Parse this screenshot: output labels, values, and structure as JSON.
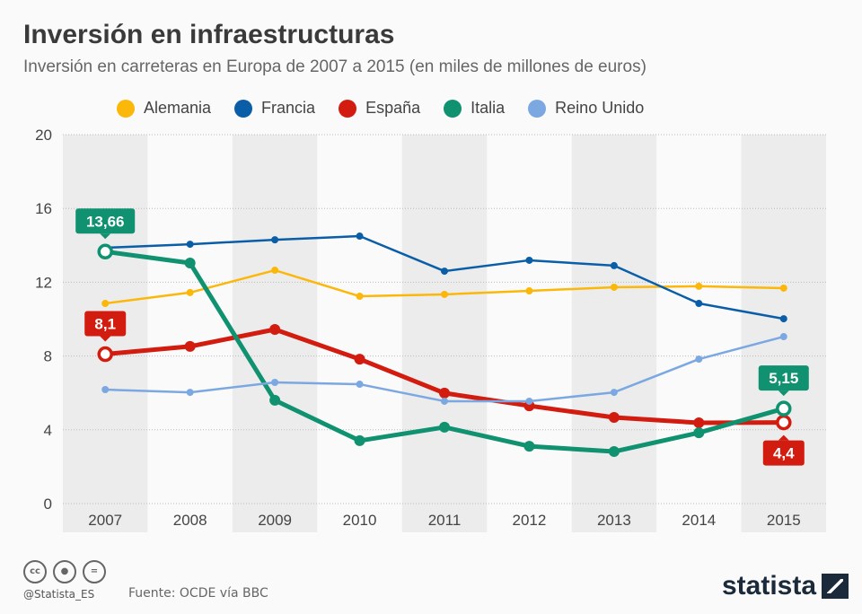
{
  "header": {
    "title": "Inversión en infraestructuras",
    "subtitle": "Inversión en carreteras en Europa de 2007 a 2015 (en miles de millones de euros)"
  },
  "chart_data": {
    "type": "line",
    "categories": [
      "2007",
      "2008",
      "2009",
      "2010",
      "2011",
      "2012",
      "2013",
      "2014",
      "2015"
    ],
    "ylim": [
      0,
      20
    ],
    "yticks": [
      "0",
      "4",
      "8",
      "12",
      "16",
      "20"
    ],
    "grid": true,
    "legend_position": "top",
    "series": [
      {
        "name": "Alemania",
        "color": "#fbb80b",
        "values": [
          10.85,
          11.44,
          12.65,
          11.24,
          11.34,
          11.53,
          11.73,
          11.78,
          11.68
        ]
      },
      {
        "name": "Francia",
        "color": "#0a5ea8",
        "values": [
          13.87,
          14.06,
          14.3,
          14.5,
          12.6,
          13.19,
          12.9,
          10.85,
          10.02
        ]
      },
      {
        "name": "España",
        "color": "#d21c0f",
        "values": [
          8.1,
          8.52,
          9.44,
          7.83,
          5.99,
          5.3,
          4.67,
          4.38,
          4.4
        ]
      },
      {
        "name": "Italia",
        "color": "#109170",
        "values": [
          13.66,
          13.04,
          5.6,
          3.41,
          4.14,
          3.11,
          2.82,
          3.84,
          5.15
        ]
      },
      {
        "name": "Reino Unido",
        "color": "#7ca8e2",
        "values": [
          6.18,
          6.03,
          6.57,
          6.47,
          5.55,
          5.55,
          6.03,
          7.83,
          9.05
        ]
      }
    ],
    "annotations": [
      {
        "series": "Italia",
        "category": "2007",
        "label": "13,66",
        "pos": "above"
      },
      {
        "series": "España",
        "category": "2007",
        "label": "8,1",
        "pos": "above"
      },
      {
        "series": "Italia",
        "category": "2015",
        "label": "5,15",
        "pos": "above"
      },
      {
        "series": "España",
        "category": "2015",
        "label": "4,4",
        "pos": "below"
      }
    ]
  },
  "footer": {
    "handle": "@Statista_ES",
    "source": "Fuente: OCDE vía BBC",
    "logo": "statista",
    "license_icons": [
      "cc-icon",
      "by-icon",
      "nd-icon"
    ],
    "cc_text": "cc",
    "nd_text": "="
  }
}
